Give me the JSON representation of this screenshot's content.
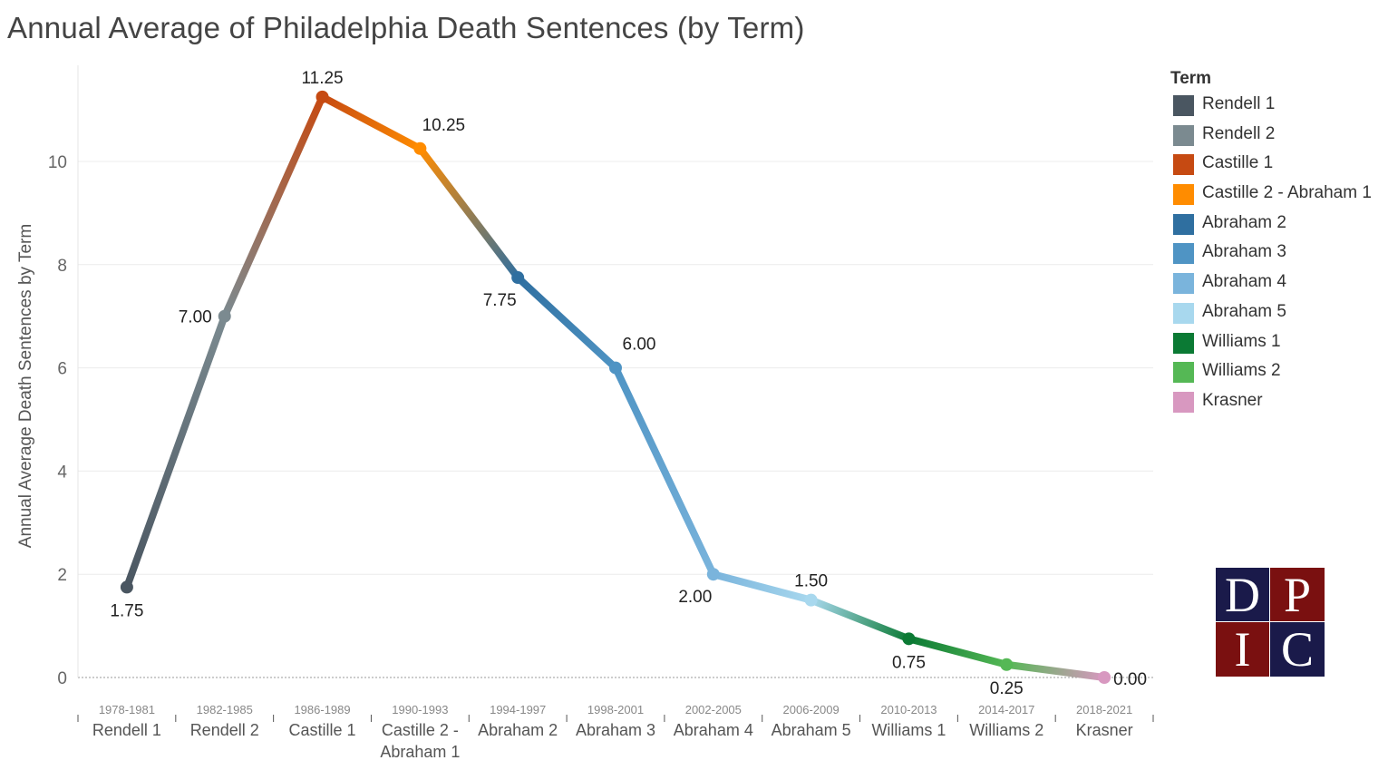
{
  "chart_data": {
    "type": "line",
    "title": "Annual Average of Philadelphia Death Sentences (by Term)",
    "ylabel": "Annual Average Death Sentences by Term",
    "xlabel": "",
    "ylim": [
      0,
      11.8
    ],
    "yticks": [
      0,
      2,
      4,
      6,
      8,
      10
    ],
    "categories": [
      {
        "years": "1978-1981",
        "label": [
          "Rendell 1"
        ]
      },
      {
        "years": "1982-1985",
        "label": [
          "Rendell 2"
        ]
      },
      {
        "years": "1986-1989",
        "label": [
          "Castille 1"
        ]
      },
      {
        "years": "1990-1993",
        "label": [
          "Castille 2 -",
          "Abraham 1"
        ]
      },
      {
        "years": "1994-1997",
        "label": [
          "Abraham 2"
        ]
      },
      {
        "years": "1998-2001",
        "label": [
          "Abraham 3"
        ]
      },
      {
        "years": "2002-2005",
        "label": [
          "Abraham 4"
        ]
      },
      {
        "years": "2006-2009",
        "label": [
          "Abraham 5"
        ]
      },
      {
        "years": "2010-2013",
        "label": [
          "Williams 1"
        ]
      },
      {
        "years": "2014-2017",
        "label": [
          "Williams 2"
        ]
      },
      {
        "years": "2018-2021",
        "label": [
          "Krasner"
        ]
      }
    ],
    "values": [
      1.75,
      7.0,
      11.25,
      10.25,
      7.75,
      6.0,
      2.0,
      1.5,
      0.75,
      0.25,
      0.0
    ],
    "value_labels": [
      "1.75",
      "7.00",
      "11.25",
      "10.25",
      "7.75",
      "6.00",
      "2.00",
      "1.50",
      "0.75",
      "0.25",
      "0.00"
    ],
    "value_label_positions": [
      "below",
      "left",
      "above",
      "above-right",
      "below-left",
      "above-right",
      "below-left",
      "above",
      "below",
      "below",
      "right"
    ],
    "point_colors": [
      "#4a5661",
      "#7b8a90",
      "#c64a12",
      "#ff8c00",
      "#2f6fa0",
      "#4f94c4",
      "#7ab4dc",
      "#a8d8ee",
      "#0b7a34",
      "#55b855",
      "#d898c0"
    ],
    "legend_title": "Term",
    "legend": [
      {
        "name": "Rendell 1",
        "color": "#4a5661"
      },
      {
        "name": "Rendell 2",
        "color": "#7b8a90"
      },
      {
        "name": "Castille 1",
        "color": "#c64a12"
      },
      {
        "name": "Castille 2 - Abraham 1",
        "color": "#ff8c00"
      },
      {
        "name": "Abraham 2",
        "color": "#2f6fa0"
      },
      {
        "name": "Abraham 3",
        "color": "#4f94c4"
      },
      {
        "name": "Abraham 4",
        "color": "#7ab4dc"
      },
      {
        "name": "Abraham 5",
        "color": "#a8d8ee"
      },
      {
        "name": "Williams 1",
        "color": "#0b7a34"
      },
      {
        "name": "Williams 2",
        "color": "#55b855"
      },
      {
        "name": "Krasner",
        "color": "#d898c0"
      }
    ],
    "legend_placement": "right",
    "grid": true
  },
  "logo": {
    "letters": [
      "D",
      "P",
      "I",
      "C"
    ]
  }
}
